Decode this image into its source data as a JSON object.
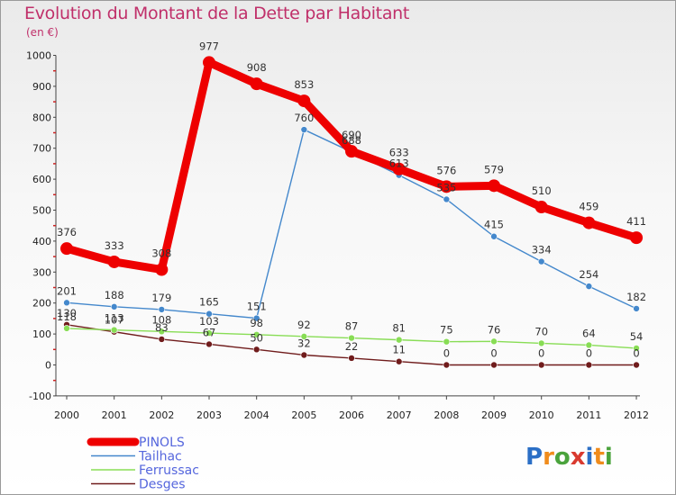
{
  "chart_data": {
    "type": "line",
    "title": "Evolution du Montant de la Dette par Habitant",
    "subtitle": "(en €)",
    "x": [
      "2000",
      "2001",
      "2002",
      "2003",
      "2004",
      "2005",
      "2006",
      "2007",
      "2008",
      "2009",
      "2010",
      "2011",
      "2012"
    ],
    "ylim": [
      -100,
      1000
    ],
    "yticks": [
      "-100",
      "0",
      "100",
      "200",
      "300",
      "400",
      "500",
      "600",
      "700",
      "800",
      "900",
      "1000"
    ],
    "grid": false,
    "legend_position": "bottom-left",
    "series": [
      {
        "name": "PINOLS",
        "color": "#ee0000",
        "values": [
          376,
          333,
          308,
          977,
          908,
          853,
          690,
          633,
          576,
          579,
          510,
          459,
          411
        ]
      },
      {
        "name": "Tailhac",
        "color": "#4488cc",
        "values": [
          201,
          188,
          179,
          165,
          151,
          760,
          688,
          613,
          535,
          415,
          334,
          254,
          182
        ]
      },
      {
        "name": "Ferrussac",
        "color": "#88dd55",
        "values": [
          118,
          113,
          108,
          103,
          98,
          92,
          87,
          81,
          75,
          76,
          70,
          64,
          54
        ]
      },
      {
        "name": "Desges",
        "color": "#701c1c",
        "values": [
          130,
          107,
          83,
          67,
          50,
          32,
          22,
          11,
          0,
          0,
          0,
          0,
          0
        ]
      }
    ]
  },
  "logo": {
    "text": "Proxiti"
  }
}
